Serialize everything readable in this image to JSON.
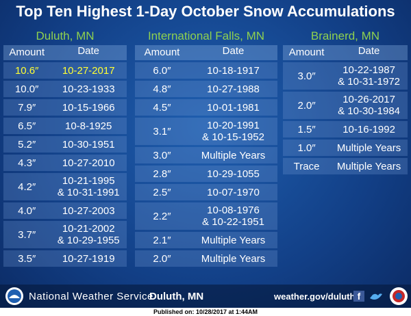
{
  "title": "Top Ten Highest 1-Day October Snow Accumulations",
  "tables": [
    {
      "name": "Duluth, MN",
      "headers": [
        "Amount",
        "Date"
      ],
      "rows": [
        {
          "amount": "10.6″",
          "date": [
            "10-27-2017"
          ]
        },
        {
          "amount": "10.0″",
          "date": [
            "10-23-1933"
          ]
        },
        {
          "amount": "7.9″",
          "date": [
            "10-15-1966"
          ]
        },
        {
          "amount": "6.5″",
          "date": [
            "10-8-1925"
          ]
        },
        {
          "amount": "5.2″",
          "date": [
            "10-30-1951"
          ]
        },
        {
          "amount": "4.3″",
          "date": [
            "10-27-2010"
          ]
        },
        {
          "amount": "4.2″",
          "date": [
            "10-21-1995",
            "& 10-31-1991"
          ]
        },
        {
          "amount": "4.0″",
          "date": [
            "10-27-2003"
          ]
        },
        {
          "amount": "3.7″",
          "date": [
            "10-21-2002",
            "& 10-29-1955"
          ]
        },
        {
          "amount": "3.5″",
          "date": [
            "10-27-1919"
          ]
        }
      ]
    },
    {
      "name": "International Falls, MN",
      "headers": [
        "Amount",
        "Date"
      ],
      "rows": [
        {
          "amount": "6.0″",
          "date": [
            "10-18-1917"
          ]
        },
        {
          "amount": "4.8″",
          "date": [
            "10-27-1988"
          ]
        },
        {
          "amount": "4.5″",
          "date": [
            "10-01-1981"
          ]
        },
        {
          "amount": "3.1″",
          "date": [
            "10-20-1991",
            "& 10-15-1952"
          ]
        },
        {
          "amount": "3.0″",
          "date": [
            "Multiple Years"
          ]
        },
        {
          "amount": "2.8″",
          "date": [
            "10-29-1055"
          ]
        },
        {
          "amount": "2.5″",
          "date": [
            "10-07-1970"
          ]
        },
        {
          "amount": "2.2″",
          "date": [
            "10-08-1976",
            "& 10-22-1951"
          ]
        },
        {
          "amount": "2.1″",
          "date": [
            "Multiple Years"
          ]
        },
        {
          "amount": "2.0″",
          "date": [
            "Multiple Years"
          ]
        }
      ]
    },
    {
      "name": "Brainerd, MN",
      "headers": [
        "Amount",
        "Date"
      ],
      "rows": [
        {
          "amount": "3.0″",
          "date": [
            "10-22-1987",
            "& 10-31-1972"
          ]
        },
        {
          "amount": "2.0″",
          "date": [
            "10-26-2017",
            "& 10-30-1984"
          ]
        },
        {
          "amount": "1.5″",
          "date": [
            "10-16-1992"
          ]
        },
        {
          "amount": "1.0″",
          "date": [
            "Multiple Years"
          ]
        },
        {
          "amount": "Trace",
          "date": [
            "Multiple Years"
          ]
        }
      ]
    }
  ],
  "footer": {
    "agency": "National Weather Service",
    "office": "Duluth, MN",
    "url": "weather.gov/duluth",
    "published": "Published on: 10/28/2017 at 1:44AM"
  }
}
